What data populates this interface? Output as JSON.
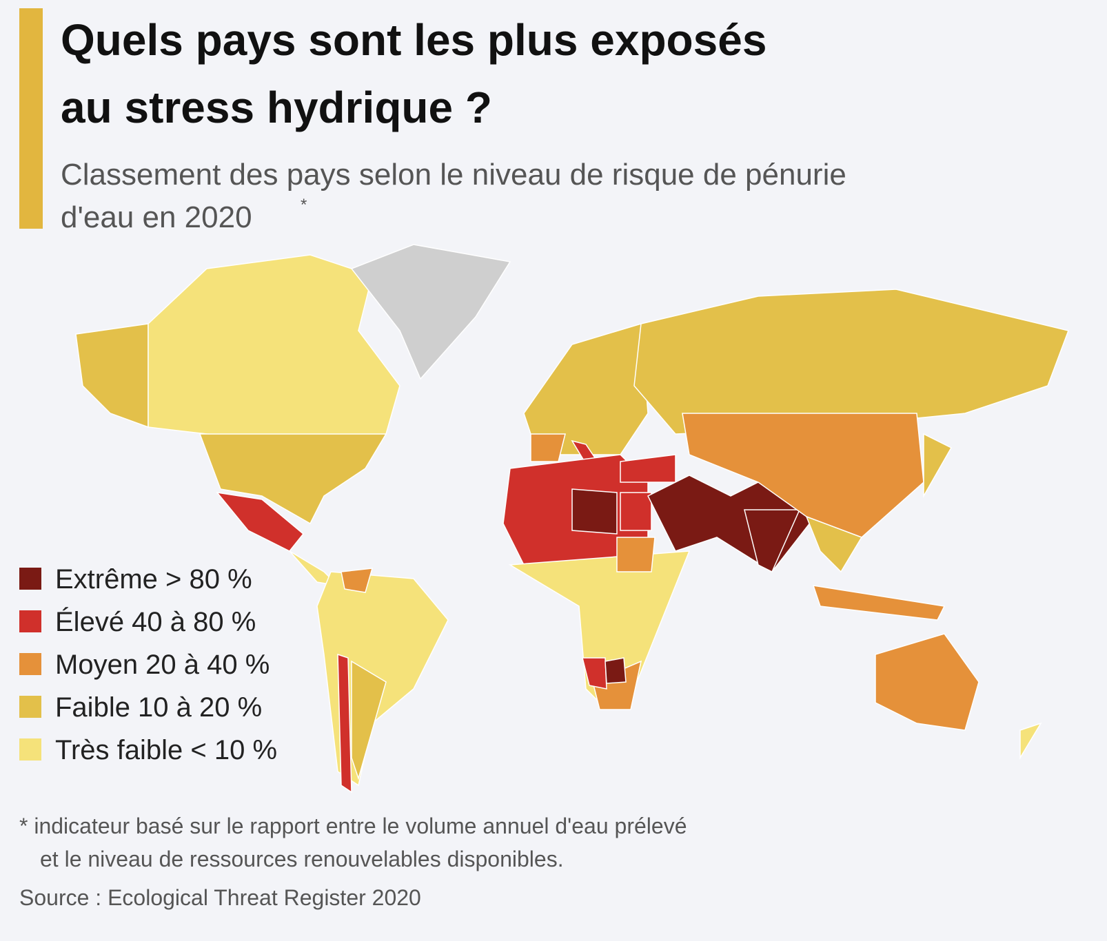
{
  "header": {
    "title_lines": [
      "Quels pays sont les plus exposés",
      "au stress hydrique ?"
    ],
    "subtitle_lines": [
      "Classement des pays selon le niveau de risque de pénurie",
      "d'eau en 2020"
    ],
    "subtitle_mark": "*"
  },
  "legend": {
    "items": [
      {
        "label": "Extrême > 80 %",
        "color": "#7a1a14"
      },
      {
        "label": "Élevé 40 à 80 %",
        "color": "#d0302b"
      },
      {
        "label": "Moyen 20 à 40 %",
        "color": "#e5913a"
      },
      {
        "label": "Faible 10 à 20 %",
        "color": "#e3c04a"
      },
      {
        "label": "Très faible < 10 %",
        "color": "#f5e27a"
      }
    ]
  },
  "footer": {
    "note_lines": [
      "* indicateur basé sur le rapport entre le volume annuel d'eau prélevé",
      "et le niveau de ressources renouvelables disponibles."
    ],
    "source": "Source : Ecological Threat Register 2020"
  }
}
